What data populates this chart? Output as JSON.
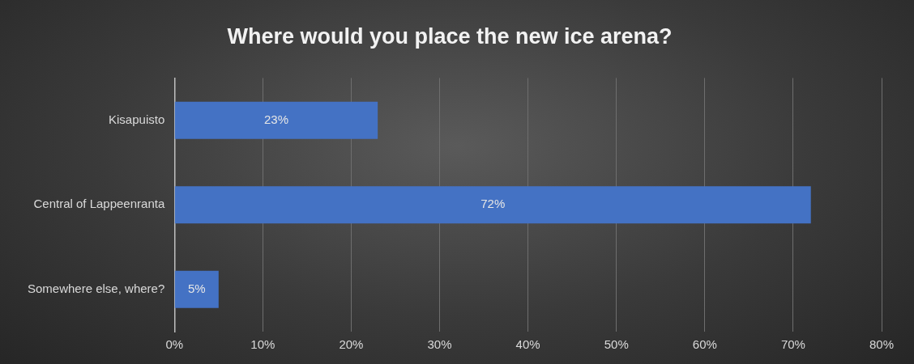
{
  "chart_data": {
    "type": "bar",
    "orientation": "horizontal",
    "title": "Where would you place the new ice arena?",
    "categories": [
      "Kisapuisto",
      "Central of Lappeenranta",
      "Somewhere else, where?"
    ],
    "values": [
      23,
      72,
      5
    ],
    "color": "#4472c4",
    "value_labels": [
      "23%",
      "72%",
      "5%"
    ],
    "xlim": [
      0,
      80
    ],
    "xticks": [
      {
        "value": 0,
        "label": "0%"
      },
      {
        "value": 10,
        "label": "10%"
      },
      {
        "value": 20,
        "label": "20%"
      },
      {
        "value": 30,
        "label": "30%"
      },
      {
        "value": 40,
        "label": "40%"
      },
      {
        "value": 50,
        "label": "50%"
      },
      {
        "value": 60,
        "label": "60%"
      },
      {
        "value": 70,
        "label": "70%"
      },
      {
        "value": 80,
        "label": "80%"
      }
    ],
    "grid": "x"
  }
}
